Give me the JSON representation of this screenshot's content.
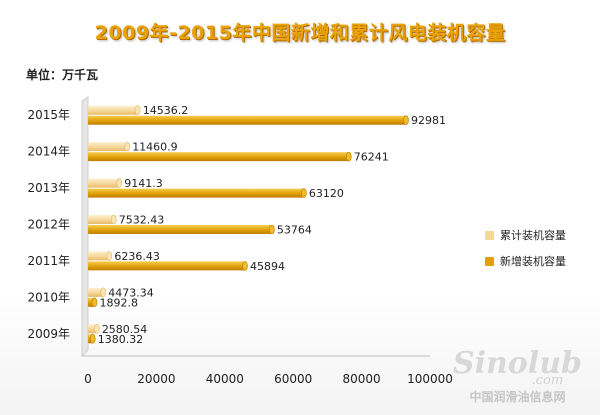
{
  "chart_data": {
    "type": "bar",
    "orientation": "horizontal",
    "title": "2009年-2015年中国新增和累计风电装机容量",
    "unit_label": "单位：万千瓦",
    "categories": [
      "2009年",
      "2010年",
      "2011年",
      "2012年",
      "2013年",
      "2014年",
      "2015年"
    ],
    "series": [
      {
        "name": "累计装机容量",
        "values": [
          2580.54,
          4473.34,
          6236.43,
          7532.43,
          9141.3,
          11460.9,
          14536.2
        ],
        "labels": [
          "2580.54",
          "4473.34",
          "6236.43",
          "7532.43",
          "9141.3",
          "11460.9",
          "14536.2"
        ],
        "color": "#f6d79a"
      },
      {
        "name": "新增装机容量",
        "values": [
          1380.32,
          1892.8,
          45894,
          53764,
          63120,
          76241,
          92981
        ],
        "labels": [
          "1380.32",
          "1892.8",
          "45894",
          "53764",
          "63120",
          "76241",
          "92981"
        ],
        "color": "#e0a007"
      }
    ],
    "xlim": [
      0,
      100000
    ],
    "xticks": [
      0,
      20000,
      40000,
      60000,
      80000,
      100000
    ],
    "xtick_labels": [
      "0",
      "20000",
      "40000",
      "60000",
      "80000",
      "100000"
    ],
    "grid": false,
    "legend_position": "right"
  },
  "watermark": {
    "logo": "Sinolub",
    "logo_sub": ".com",
    "site": "中国润滑油信息网"
  }
}
